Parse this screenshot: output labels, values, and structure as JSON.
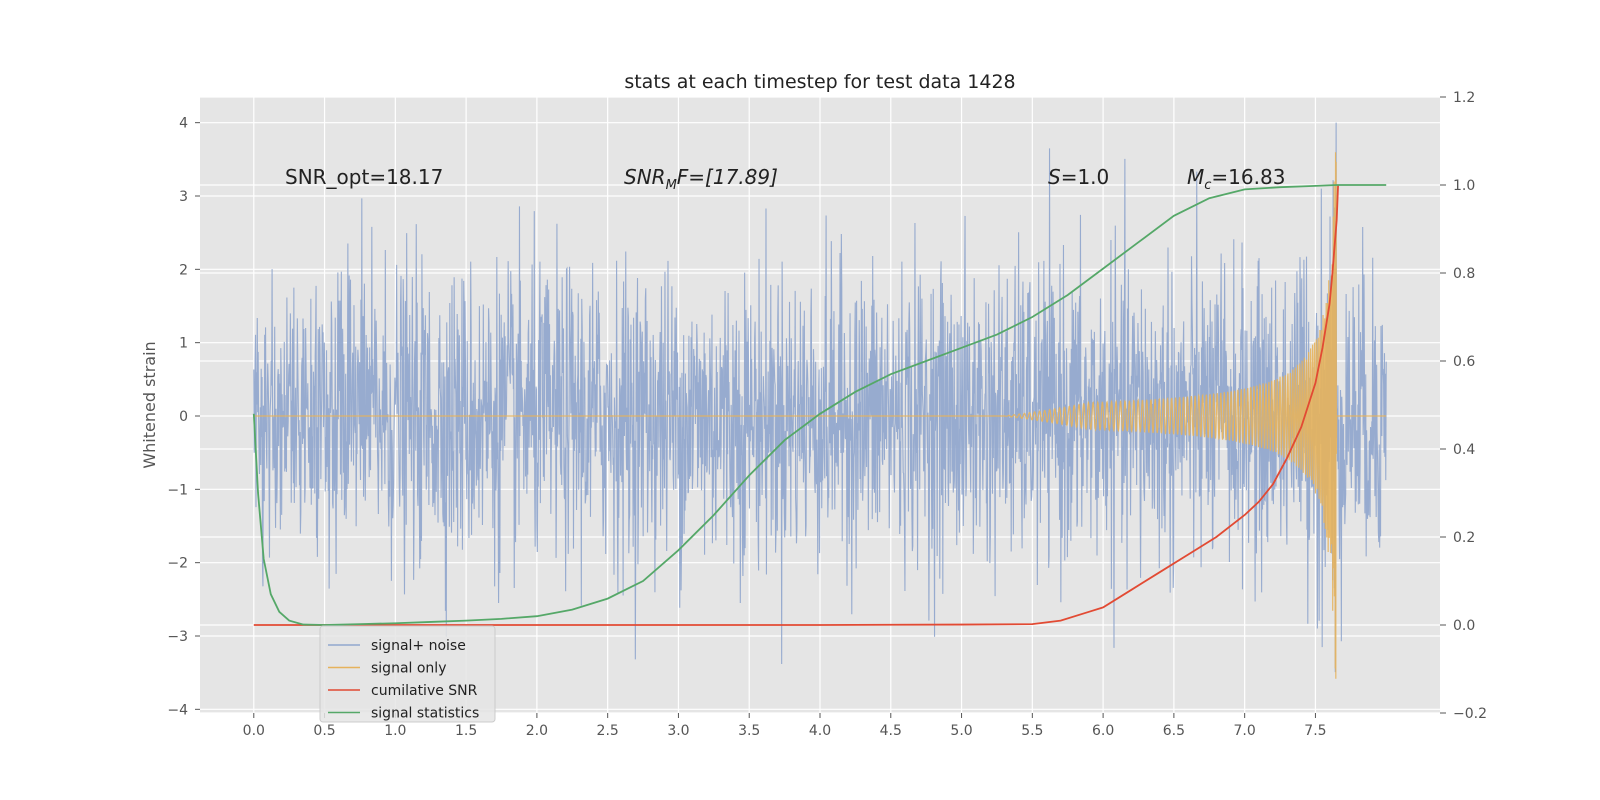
{
  "chart_data": {
    "type": "line",
    "title": "stats at each timestep for test data 1428",
    "ylabel": "Whitened strain",
    "xlabel": "",
    "xlim": [
      -0.38,
      8.38
    ],
    "ylim": [
      -4.05,
      4.35
    ],
    "y2lim": [
      -0.2,
      1.2
    ],
    "x_ticks": [
      "0.0",
      "0.5",
      "1.0",
      "1.5",
      "2.0",
      "2.5",
      "3.0",
      "3.5",
      "4.0",
      "4.5",
      "5.0",
      "5.5",
      "6.0",
      "6.5",
      "7.0",
      "7.5"
    ],
    "y_ticks": [
      "4",
      "3",
      "2",
      "1",
      "0",
      "−1",
      "−2",
      "−3",
      "−4"
    ],
    "y2_ticks": [
      "1.2",
      "1.0",
      "0.8",
      "0.6",
      "0.4",
      "0.2",
      "0.0",
      "−0.2"
    ],
    "grid": true,
    "legend_position": "lower-left",
    "annotations": {
      "snr_opt": "SNR_opt=18.17",
      "snr_mf_main": "SNR",
      "snr_mf_sub": "M",
      "snr_mf_rest": "F=[17.89]",
      "s_main": "S",
      "s_rest": "=1.0",
      "mc_main": "M",
      "mc_sub": "c",
      "mc_rest": "=16.83"
    },
    "series": [
      {
        "name": "signal+ noise",
        "color": "#92a8ce",
        "axis": "left",
        "description_range": [
          -3.5,
          4.0
        ],
        "x_range": [
          0.0,
          8.0
        ],
        "envelope_sigma": 1.0
      },
      {
        "name": "signal only",
        "color": "#e6b25c",
        "axis": "left",
        "x_range": [
          0.0,
          8.0
        ],
        "merger_time": 7.65,
        "peak_amplitude": 3.6
      },
      {
        "name": "cumilative SNR",
        "color": "#e24a33",
        "axis": "right",
        "x": [
          0.0,
          0.5,
          1.0,
          2.0,
          3.0,
          4.0,
          5.0,
          5.5,
          5.7,
          5.9,
          6.0,
          6.2,
          6.4,
          6.6,
          6.8,
          7.0,
          7.1,
          7.2,
          7.3,
          7.4,
          7.5,
          7.55,
          7.6,
          7.62,
          7.65,
          7.66
        ],
        "values": [
          0.0,
          0.0,
          0.0,
          0.0,
          0.0,
          0.0,
          0.001,
          0.002,
          0.01,
          0.03,
          0.04,
          0.08,
          0.12,
          0.16,
          0.2,
          0.25,
          0.28,
          0.32,
          0.38,
          0.45,
          0.55,
          0.63,
          0.73,
          0.8,
          0.92,
          1.0
        ]
      },
      {
        "name": "signal statistics",
        "color": "#55a868",
        "axis": "right",
        "x": [
          0.0,
          0.03,
          0.07,
          0.12,
          0.18,
          0.25,
          0.35,
          0.5,
          0.75,
          1.0,
          1.25,
          1.5,
          1.75,
          2.0,
          2.25,
          2.5,
          2.75,
          3.0,
          3.25,
          3.5,
          3.75,
          4.0,
          4.25,
          4.5,
          4.75,
          5.0,
          5.25,
          5.5,
          5.75,
          6.0,
          6.25,
          6.5,
          6.75,
          7.0,
          7.25,
          7.5,
          7.65,
          7.8,
          8.0
        ],
        "values": [
          0.48,
          0.3,
          0.15,
          0.07,
          0.03,
          0.01,
          0.001,
          0.0,
          0.002,
          0.004,
          0.007,
          0.01,
          0.014,
          0.02,
          0.035,
          0.06,
          0.1,
          0.17,
          0.25,
          0.34,
          0.42,
          0.48,
          0.53,
          0.57,
          0.6,
          0.63,
          0.66,
          0.7,
          0.75,
          0.81,
          0.87,
          0.93,
          0.97,
          0.99,
          0.995,
          0.998,
          1.0,
          1.0,
          1.0
        ]
      }
    ]
  }
}
